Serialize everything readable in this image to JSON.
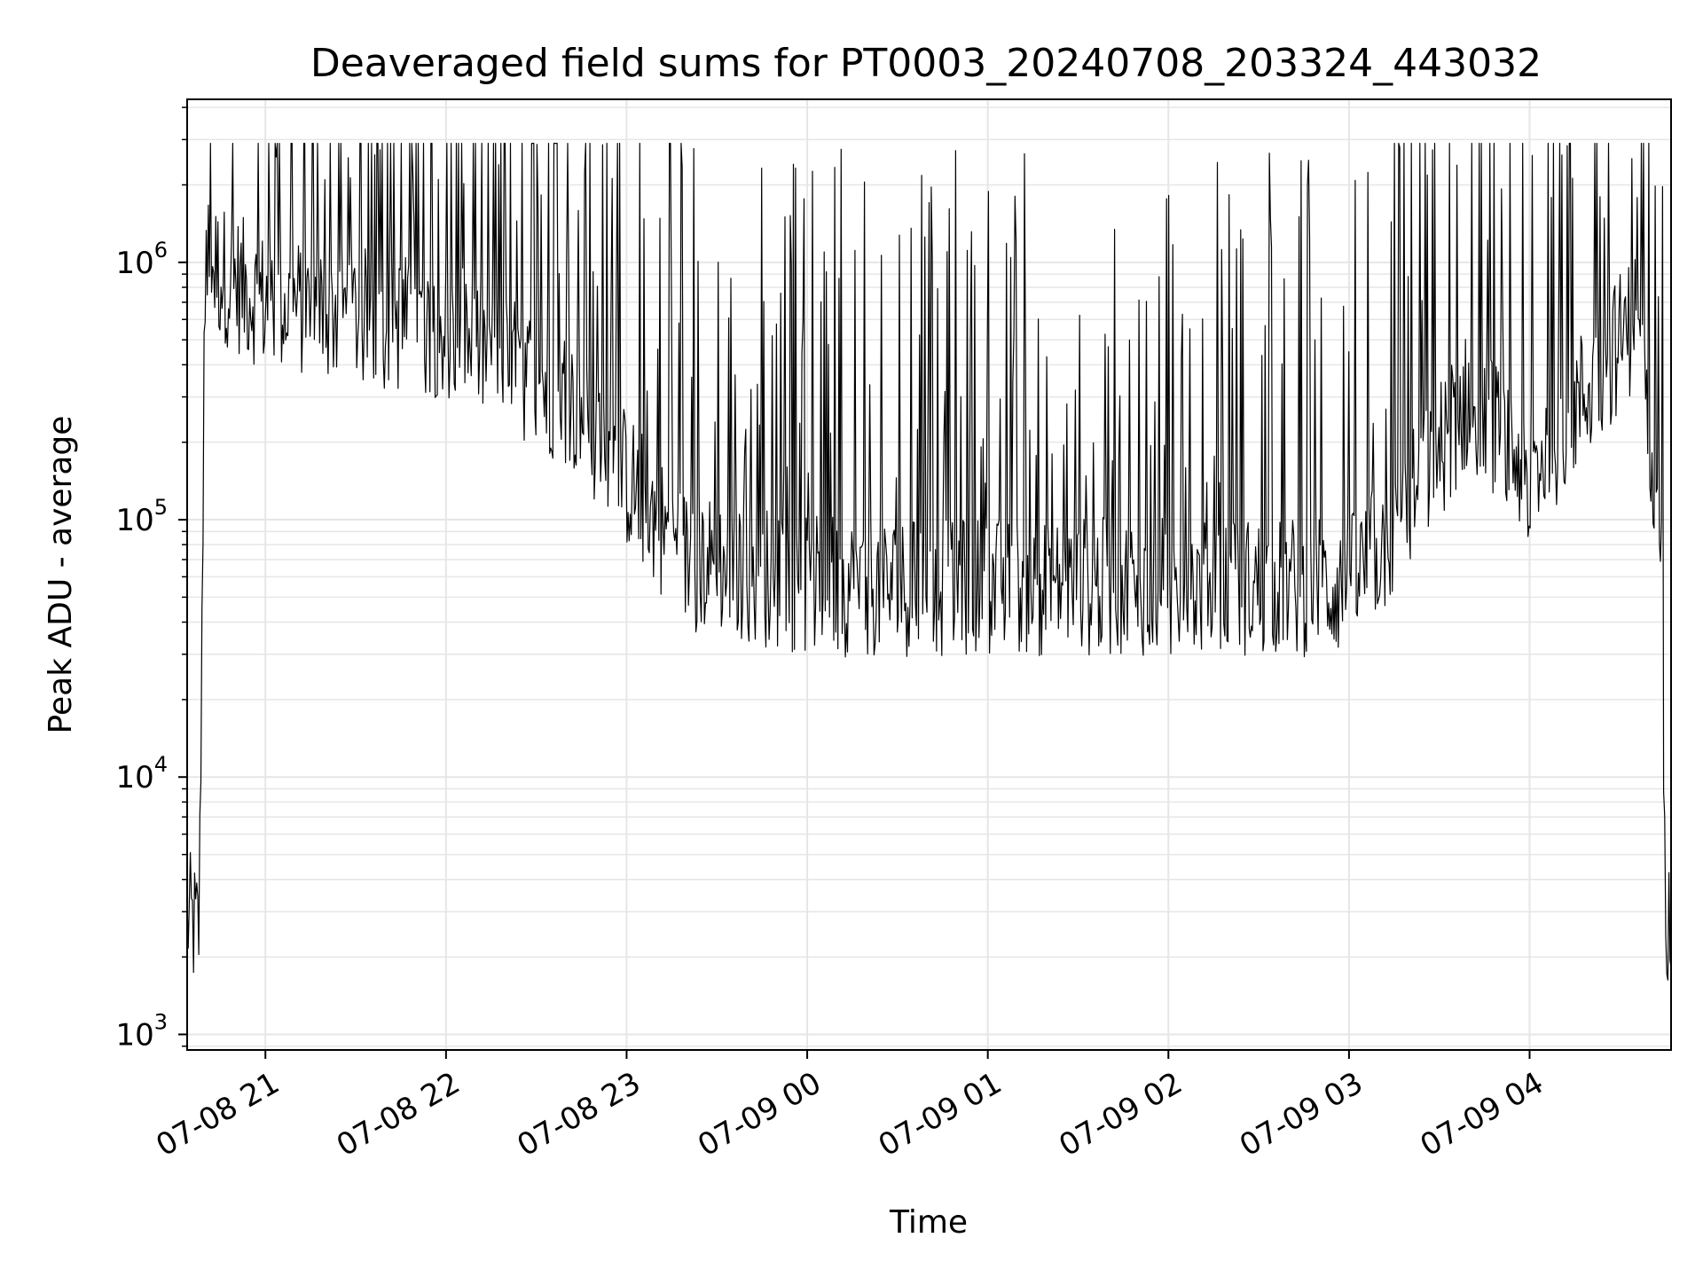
{
  "chart_data": {
    "type": "line",
    "title": "Deaveraged field sums for PT0003_20240708_203324_443032",
    "xlabel": "Time",
    "ylabel": "Peak ADU - average",
    "yscale": "log",
    "ylim": [
      870,
      4300000
    ],
    "xlim": [
      "2024-07-08 20:34",
      "2024-07-09 04:47"
    ],
    "grid": true,
    "line_color": "#000000",
    "grid_color": "#e6e6e6",
    "x_ticks": [
      {
        "value": "2024-07-08 21:00",
        "label": "07-08 21"
      },
      {
        "value": "2024-07-08 22:00",
        "label": "07-08 22"
      },
      {
        "value": "2024-07-08 23:00",
        "label": "07-08 23"
      },
      {
        "value": "2024-07-09 00:00",
        "label": "07-09 00"
      },
      {
        "value": "2024-07-09 01:00",
        "label": "07-09 01"
      },
      {
        "value": "2024-07-09 02:00",
        "label": "07-09 02"
      },
      {
        "value": "2024-07-09 03:00",
        "label": "07-09 03"
      },
      {
        "value": "2024-07-09 04:00",
        "label": "07-09 04"
      }
    ],
    "y_ticks": [
      {
        "value": 1000,
        "base": "10",
        "exp": "3"
      },
      {
        "value": 10000,
        "base": "10",
        "exp": "4"
      },
      {
        "value": 100000,
        "base": "10",
        "exp": "5"
      },
      {
        "value": 1000000,
        "base": "10",
        "exp": "6"
      }
    ],
    "series": [
      {
        "envelope": [
          {
            "t": "2024-07-08 20:34",
            "base": 2800
          },
          {
            "t": "2024-07-08 20:38",
            "base": 2500
          },
          {
            "t": "2024-07-08 20:40",
            "base": 1000000
          },
          {
            "t": "2024-07-08 21:00",
            "base": 700000
          },
          {
            "t": "2024-07-08 22:00",
            "base": 550000
          },
          {
            "t": "2024-07-08 22:40",
            "base": 300000
          },
          {
            "t": "2024-07-08 23:20",
            "base": 70000
          },
          {
            "t": "2024-07-09 00:00",
            "base": 55000
          },
          {
            "t": "2024-07-09 01:00",
            "base": 55000
          },
          {
            "t": "2024-07-09 02:00",
            "base": 55000
          },
          {
            "t": "2024-07-09 03:00",
            "base": 55000
          },
          {
            "t": "2024-07-09 03:15",
            "base": 90000
          },
          {
            "t": "2024-07-09 03:40",
            "base": 300000
          },
          {
            "t": "2024-07-09 04:00",
            "base": 150000
          },
          {
            "t": "2024-07-09 04:35",
            "base": 600000
          },
          {
            "t": "2024-07-09 04:44",
            "base": 100000
          },
          {
            "t": "2024-07-09 04:45",
            "base": 3000
          },
          {
            "t": "2024-07-09 04:47",
            "base": 3000
          }
        ],
        "peak_max": 2900000,
        "min_value": 1300,
        "sample_count": 1400
      }
    ]
  }
}
